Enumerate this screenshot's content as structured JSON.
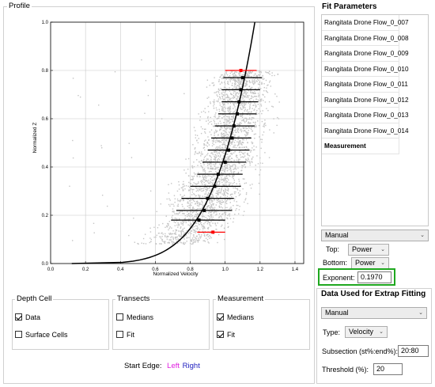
{
  "profile": {
    "title": "Profile",
    "chart": {
      "ylabel": "Normalized Z",
      "xlabel": "Normalized Velocity",
      "x_ticks": [
        "0.0",
        "0.2",
        "0.4",
        "0.6",
        "0.8",
        "1.0",
        "1.2",
        "1.4"
      ],
      "y_ticks": [
        "0.0",
        "0.2",
        "0.4",
        "0.6",
        "0.8",
        "1.0"
      ]
    },
    "depth_cell": {
      "title": "Depth Cell",
      "data_label": "Data",
      "data_checked": true,
      "surface_label": "Surface Cells",
      "surface_checked": false
    },
    "transects": {
      "title": "Transects",
      "medians_label": "Medians",
      "medians_checked": false,
      "fit_label": "Fit",
      "fit_checked": false
    },
    "measurement": {
      "title": "Measurement",
      "medians_label": "Medians",
      "medians_checked": true,
      "fit_label": "Fit",
      "fit_checked": true
    },
    "start_edge": {
      "label": "Start Edge:",
      "left": "Left",
      "right": "Right",
      "left_color": "#e020e0",
      "right_color": "#2020c0"
    }
  },
  "fit_parameters": {
    "title": "Fit Parameters",
    "items": [
      "Rangitata Drone Flow_0_007",
      "Rangitata Drone Flow_0_008",
      "Rangitata Drone Flow_0_009",
      "Rangitata Drone Flow_0_010",
      "Rangitata Drone Flow_0_011",
      "Rangitata Drone Flow_0_012",
      "Rangitata Drone Flow_0_013",
      "Rangitata Drone Flow_0_014"
    ],
    "measurement_item": "Measurement",
    "mode": "Manual",
    "top_label": "Top:",
    "top_value": "Power",
    "bottom_label": "Bottom:",
    "bottom_value": "Power",
    "exponent_label": "Exponent:",
    "exponent_value": "0.1970",
    "highlight_color": "#1fa81f"
  },
  "extrap": {
    "title": "Data Used for Extrap Fitting",
    "mode": "Manual",
    "type_label": "Type:",
    "type_value": "Velocity",
    "subsection_label": "Subsection (st%:end%):",
    "subsection_value": "20:80",
    "threshold_label": "Threshold (%):",
    "threshold_value": "20"
  },
  "chart_data": {
    "type": "scatter",
    "xlabel": "Normalized Velocity",
    "ylabel": "Normalized Z",
    "xlim": [
      0,
      1.45
    ],
    "ylim": [
      0,
      1.0
    ],
    "x_ticks": [
      0,
      0.2,
      0.4,
      0.6,
      0.8,
      1.0,
      1.2,
      1.4
    ],
    "y_ticks": [
      0,
      0.2,
      0.4,
      0.6,
      0.8,
      1.0
    ],
    "grid": true,
    "medians": [
      {
        "z": 0.18,
        "x": 0.85,
        "lo": 0.69,
        "hi": 1.0
      },
      {
        "z": 0.22,
        "x": 0.88,
        "lo": 0.72,
        "hi": 1.04
      },
      {
        "z": 0.27,
        "x": 0.9,
        "lo": 0.75,
        "hi": 1.05
      },
      {
        "z": 0.32,
        "x": 0.94,
        "lo": 0.8,
        "hi": 1.09
      },
      {
        "z": 0.37,
        "x": 0.96,
        "lo": 0.84,
        "hi": 1.1
      },
      {
        "z": 0.42,
        "x": 1.0,
        "lo": 0.87,
        "hi": 1.12
      },
      {
        "z": 0.47,
        "x": 1.02,
        "lo": 0.9,
        "hi": 1.14
      },
      {
        "z": 0.52,
        "x": 1.04,
        "lo": 0.92,
        "hi": 1.15
      },
      {
        "z": 0.57,
        "x": 1.05,
        "lo": 0.94,
        "hi": 1.17
      },
      {
        "z": 0.62,
        "x": 1.07,
        "lo": 0.96,
        "hi": 1.18
      },
      {
        "z": 0.67,
        "x": 1.08,
        "lo": 0.98,
        "hi": 1.19
      },
      {
        "z": 0.72,
        "x": 1.09,
        "lo": 0.98,
        "hi": 1.2
      },
      {
        "z": 0.77,
        "x": 1.1,
        "lo": 0.99,
        "hi": 1.21
      }
    ],
    "excluded_medians": [
      {
        "z": 0.13,
        "x": 0.93,
        "lo": 0.84,
        "hi": 1.0
      },
      {
        "z": 0.8,
        "x": 1.09,
        "lo": 1.0,
        "hi": 1.18
      }
    ],
    "fit_curve": {
      "type": "power",
      "exponent": 0.197,
      "coefficient": 1.17
    }
  }
}
